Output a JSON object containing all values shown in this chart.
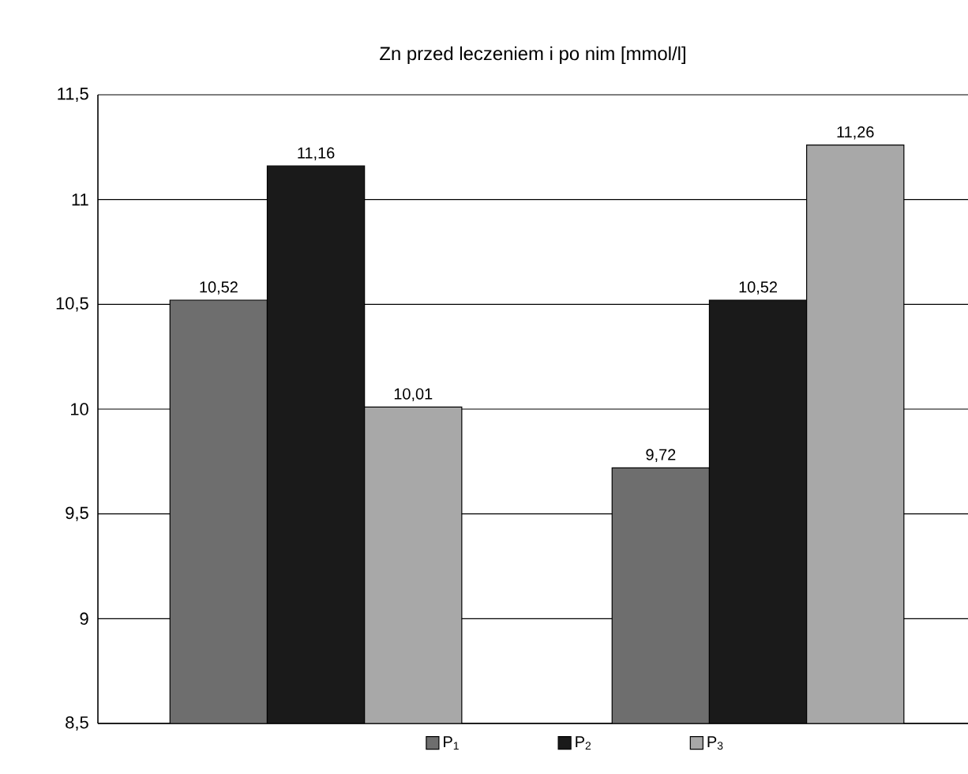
{
  "chart_data": {
    "type": "bar",
    "title": "Zn przed leczeniem i po nim [mmol/l]",
    "categories": [
      null,
      null
    ],
    "series": [
      {
        "name": "P$_{1}$",
        "color": "#6e6e6e",
        "values": [
          10.52,
          9.72
        ],
        "value_labels": [
          "10,52",
          "9,72"
        ]
      },
      {
        "name": "P$_{2}$",
        "color": "#1a1a1a",
        "values": [
          11.16,
          10.52
        ],
        "value_labels": [
          "11,16",
          "10,52"
        ]
      },
      {
        "name": "P$_{3}$",
        "color": "#a8a8a8",
        "values": [
          10.01,
          11.26
        ],
        "value_labels": [
          "10,01",
          "11,26"
        ]
      }
    ],
    "ylim": [
      8.5,
      11.5
    ],
    "yticks": [
      {
        "value": 8.5,
        "label": "8,5"
      },
      9,
      {
        "value": 9.5,
        "label": "9,5"
      },
      10,
      {
        "value": 10.5,
        "label": "10,5"
      },
      11,
      {
        "value": 11.5,
        "label": "11,5"
      }
    ],
    "grid": "y",
    "legend": "bottom"
  }
}
